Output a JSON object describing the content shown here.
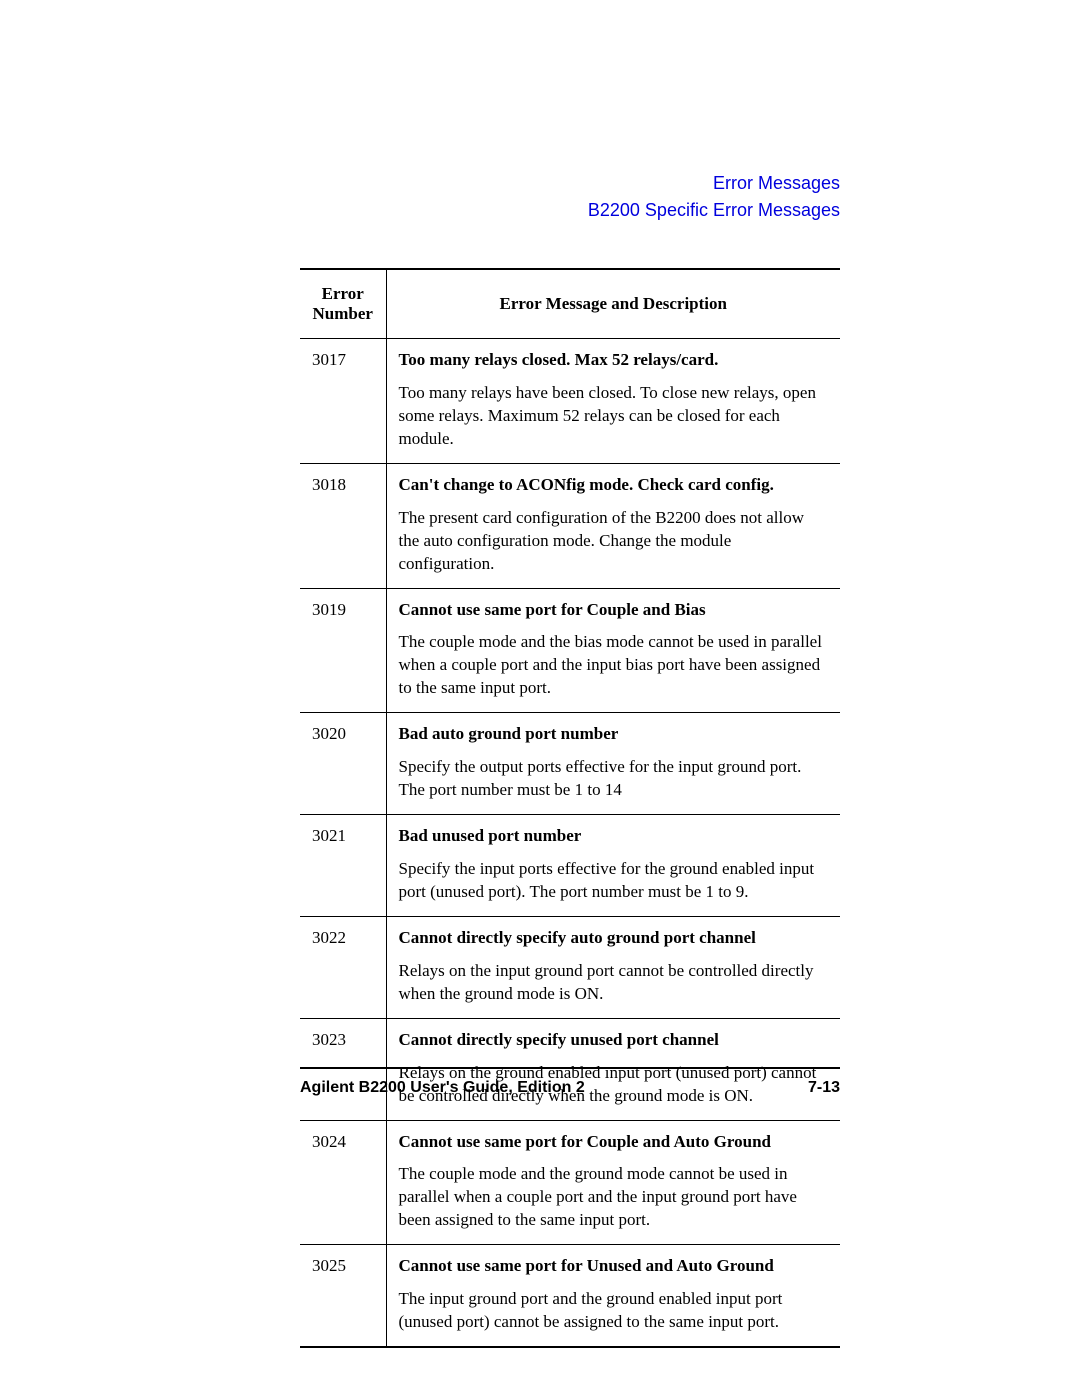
{
  "header": {
    "link1": "Error Messages",
    "link2": "B2200 Specific Error Messages",
    "link_color": "#0000dd"
  },
  "table": {
    "col1_header_line1": "Error",
    "col1_header_line2": "Number",
    "col2_header": "Error Message and Description",
    "rows": [
      {
        "num": "3017",
        "title": "Too many relays closed. Max 52 relays/card.",
        "desc": "Too many relays have been closed. To close new relays, open some relays. Maximum 52 relays can be closed for each module."
      },
      {
        "num": "3018",
        "title": "Can't change to ACONfig mode. Check card config.",
        "desc": "The present card configuration of the B2200 does not allow the auto configuration mode. Change the module configuration."
      },
      {
        "num": "3019",
        "title": "Cannot use same port for Couple and Bias",
        "desc": "The couple mode and the bias mode cannot be used in parallel when a couple port and the input bias port have been assigned to the same input port."
      },
      {
        "num": "3020",
        "title": "Bad auto ground port number",
        "desc": "Specify the output ports effective for the input ground port. The port number must be 1 to 14"
      },
      {
        "num": "3021",
        "title": "Bad unused port number",
        "desc": "Specify the input ports effective for the ground enabled input port (unused port). The port number must be 1 to 9."
      },
      {
        "num": "3022",
        "title": "Cannot directly specify auto ground port channel",
        "desc": "Relays on the input ground port cannot be controlled directly when the ground mode is ON."
      },
      {
        "num": "3023",
        "title": "Cannot directly specify unused port channel",
        "desc": "Relays on the ground enabled input port (unused port) cannot be controlled directly when the ground mode is ON."
      },
      {
        "num": "3024",
        "title": "Cannot use same port for Couple and Auto Ground",
        "desc": "The couple mode and the ground mode cannot be used in parallel when a couple port and the input ground port have been assigned to the same input port."
      },
      {
        "num": "3025",
        "title": "Cannot use same port for Unused and Auto Ground",
        "desc": "The input ground port and the ground enabled input port (unused port) cannot be assigned to the same input port."
      }
    ]
  },
  "footer": {
    "left": "Agilent B2200 User's Guide, Edition 2",
    "right": "7-13"
  }
}
